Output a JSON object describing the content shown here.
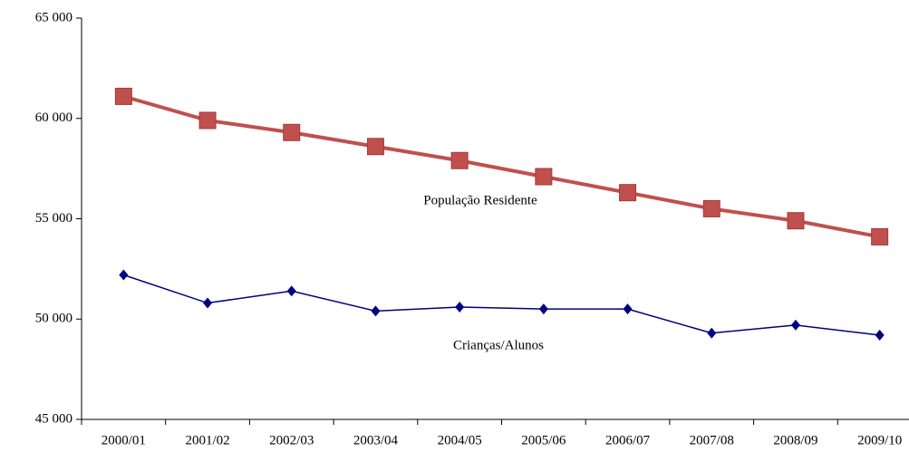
{
  "chart_data": {
    "type": "line",
    "categories": [
      "2000/01",
      "2001/02",
      "2002/03",
      "2003/04",
      "2004/05",
      "2005/06",
      "2006/07",
      "2007/08",
      "2008/09",
      "2009/10"
    ],
    "series": [
      {
        "name": "População Residente",
        "color": "#c0504d",
        "marker": "square",
        "values": [
          61100,
          59900,
          59300,
          58600,
          57900,
          57100,
          56300,
          55500,
          54900,
          54100
        ]
      },
      {
        "name": "Crianças/Alunos",
        "color": "#000080",
        "marker": "diamond",
        "values": [
          52200,
          50800,
          51400,
          50400,
          50600,
          50500,
          50500,
          49300,
          49700,
          49200
        ]
      }
    ],
    "ylim": [
      45000,
      65000
    ],
    "yticks": [
      {
        "value": 45000,
        "label": "45 000"
      },
      {
        "value": 50000,
        "label": "50 000"
      },
      {
        "value": 55000,
        "label": "55 000"
      },
      {
        "value": 60000,
        "label": "60 000"
      },
      {
        "value": 65000,
        "label": "65 000"
      }
    ],
    "grid": false
  }
}
